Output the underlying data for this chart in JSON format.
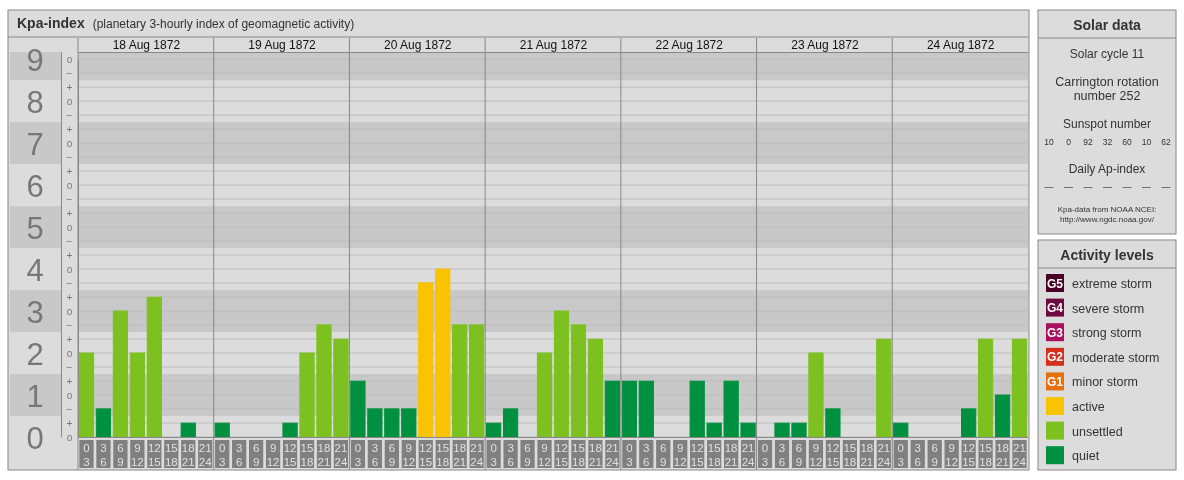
{
  "chart_data": {
    "type": "bar",
    "title": "Kpa-index",
    "subtitle": "(planetary 3-hourly index of geomagnetic activity)",
    "legend_title": "Activity levels",
    "legend": "right",
    "grid": true,
    "categories": [
      "0 3",
      "3 6",
      "6 9",
      "9 12",
      "12 15",
      "15 18",
      "18 21",
      "21 24",
      "0 3",
      "3 6",
      "6 9",
      "9 12",
      "12 15",
      "15 18",
      "18 21",
      "21 24",
      "0 3",
      "3 6",
      "6 9",
      "9 12",
      "12 15",
      "15 18",
      "18 21",
      "21 24",
      "0 3",
      "3 6",
      "6 9",
      "9 12",
      "12 15",
      "15 18",
      "18 21",
      "21 24",
      "0 3",
      "3 6",
      "6 9",
      "9 12",
      "12 15",
      "15 18",
      "18 21",
      "21 24",
      "0 3",
      "3 6",
      "6 9",
      "9 12",
      "12 15",
      "15 18",
      "18 21",
      "21 24",
      "0 3",
      "3 6",
      "6 9",
      "9 12",
      "12 15",
      "15 18",
      "18 21",
      "21 24"
    ],
    "series": [
      {
        "name": "extreme storm",
        "color": "#4b0026",
        "values": [
          null,
          null,
          null,
          null,
          null,
          null,
          null,
          null,
          null,
          null,
          null,
          null,
          null,
          null,
          null,
          null,
          null,
          null,
          null,
          null,
          null,
          null,
          null,
          null,
          null,
          null,
          null,
          null,
          null,
          null,
          null,
          null,
          null,
          null,
          null,
          null,
          null,
          null,
          null,
          null,
          null,
          null,
          null,
          null,
          null,
          null,
          null,
          null,
          null,
          null,
          null,
          null,
          null,
          null,
          null,
          null
        ]
      },
      {
        "name": "severe storm",
        "color": "#6e0a40",
        "values": [
          null,
          null,
          null,
          null,
          null,
          null,
          null,
          null,
          null,
          null,
          null,
          null,
          null,
          null,
          null,
          null,
          null,
          null,
          null,
          null,
          null,
          null,
          null,
          null,
          null,
          null,
          null,
          null,
          null,
          null,
          null,
          null,
          null,
          null,
          null,
          null,
          null,
          null,
          null,
          null,
          null,
          null,
          null,
          null,
          null,
          null,
          null,
          null,
          null,
          null,
          null,
          null,
          null,
          null,
          null,
          null
        ]
      },
      {
        "name": "strong storm",
        "color": "#a8105e",
        "values": [
          null,
          null,
          null,
          null,
          null,
          null,
          null,
          null,
          null,
          null,
          null,
          null,
          null,
          null,
          null,
          null,
          null,
          null,
          null,
          null,
          null,
          null,
          null,
          null,
          null,
          null,
          null,
          null,
          null,
          null,
          null,
          null,
          null,
          null,
          null,
          null,
          null,
          null,
          null,
          null,
          null,
          null,
          null,
          null,
          null,
          null,
          null,
          null,
          null,
          null,
          null,
          null,
          null,
          null,
          null,
          null
        ]
      },
      {
        "name": "moderate storm",
        "color": "#d42e1c",
        "values": [
          null,
          null,
          null,
          null,
          null,
          null,
          null,
          null,
          null,
          null,
          null,
          null,
          null,
          null,
          null,
          null,
          null,
          null,
          null,
          null,
          null,
          null,
          null,
          null,
          null,
          null,
          null,
          null,
          null,
          null,
          null,
          null,
          null,
          null,
          null,
          null,
          null,
          null,
          null,
          null,
          null,
          null,
          null,
          null,
          null,
          null,
          null,
          null,
          null,
          null,
          null,
          null,
          null,
          null,
          null,
          null
        ]
      },
      {
        "name": "minor storm",
        "color": "#e5700e",
        "values": [
          null,
          null,
          null,
          null,
          null,
          null,
          null,
          null,
          null,
          null,
          null,
          null,
          null,
          null,
          null,
          null,
          null,
          null,
          null,
          null,
          null,
          null,
          null,
          null,
          null,
          null,
          null,
          null,
          null,
          null,
          null,
          null,
          null,
          null,
          null,
          null,
          null,
          null,
          null,
          null,
          null,
          null,
          null,
          null,
          null,
          null,
          null,
          null,
          null,
          null,
          null,
          null,
          null,
          null,
          null,
          null
        ]
      },
      {
        "name": "active",
        "color": "#f9c300",
        "values": [
          null,
          null,
          null,
          null,
          null,
          null,
          null,
          null,
          null,
          null,
          null,
          null,
          null,
          null,
          null,
          null,
          null,
          null,
          null,
          null,
          3.67,
          4,
          null,
          null,
          null,
          null,
          null,
          null,
          null,
          null,
          null,
          null,
          null,
          null,
          null,
          null,
          null,
          null,
          null,
          null,
          null,
          null,
          null,
          null,
          null,
          null,
          null,
          null,
          null,
          null,
          null,
          null,
          null,
          null,
          null,
          null
        ]
      },
      {
        "name": "unsettled",
        "color": "#7cc120",
        "values": [
          2,
          null,
          3,
          2,
          3.33,
          null,
          null,
          null,
          null,
          null,
          null,
          null,
          null,
          2,
          2.67,
          2.33,
          null,
          null,
          null,
          null,
          null,
          null,
          2.67,
          2.67,
          null,
          null,
          null,
          2,
          3,
          2.67,
          2.33,
          null,
          null,
          null,
          null,
          null,
          null,
          null,
          null,
          null,
          null,
          null,
          null,
          2,
          null,
          null,
          null,
          2.33,
          null,
          null,
          null,
          null,
          null,
          2.33,
          null,
          2.33
        ]
      },
      {
        "name": "quiet",
        "color": "#009140",
        "values": [
          null,
          0.67,
          null,
          null,
          null,
          0,
          0.33,
          0,
          0.33,
          0,
          0,
          0,
          0.33,
          null,
          null,
          null,
          1.33,
          0.67,
          0.67,
          0.67,
          null,
          null,
          null,
          null,
          0.33,
          0.67,
          0,
          null,
          null,
          null,
          null,
          1.33,
          1.33,
          1.33,
          0,
          0,
          1.33,
          0.33,
          1.33,
          0.33,
          0,
          0.33,
          0.33,
          null,
          0.67,
          0,
          0,
          null,
          0.33,
          0,
          0,
          0,
          0.67,
          null,
          1,
          null
        ]
      }
    ],
    "ylim": [
      0,
      9.17
    ],
    "yticks": [
      0,
      1,
      2,
      3,
      4,
      5,
      6,
      7,
      8,
      9
    ],
    "y2_categories": [
      "o",
      "−",
      "+",
      "o",
      "−",
      "+",
      "o",
      "−",
      "+",
      "o",
      "−",
      "+",
      "o",
      "−",
      "+",
      "o",
      "−",
      "+",
      "o",
      "−",
      "+",
      "o",
      "−",
      "+",
      "o",
      "−",
      "+",
      "o"
    ],
    "x2lim": [
      "1872-08-18",
      "1872-08-25"
    ],
    "x2ticks": [
      {
        "value": "1872-08-18T12:00",
        "label": "18 Aug 1872"
      },
      {
        "value": "1872-08-19T12:00",
        "label": "19 Aug 1872"
      },
      {
        "value": "1872-08-20T12:00",
        "label": "20 Aug 1872"
      },
      {
        "value": "1872-08-21T12:00",
        "label": "21 Aug 1872"
      },
      {
        "value": "1872-08-22T12:00",
        "label": "22 Aug 1872"
      },
      {
        "value": "1872-08-23T12:00",
        "label": "23 Aug 1872"
      },
      {
        "value": "1872-08-24T12:00",
        "label": "24 Aug 1872"
      }
    ],
    "bands": [
      {
        "axis": "y",
        "from": 0.5,
        "to": 1.5,
        "color": "#c8c8c8"
      },
      {
        "axis": "y",
        "from": 2.5,
        "to": 3.5,
        "color": "#c8c8c8"
      },
      {
        "axis": "y",
        "from": 4.5,
        "to": 5.5,
        "color": "#c8c8c8"
      },
      {
        "axis": "y",
        "from": 6.5,
        "to": 7.5,
        "color": "#c8c8c8"
      },
      {
        "axis": "y",
        "from": 8.5,
        "to": 9.17,
        "color": "#c8c8c8"
      }
    ],
    "annotations": [
      "Solar data",
      "Solar cycle 11",
      "Carrington rotation number 252",
      "Sunspot number",
      "10",
      "0",
      "92",
      "32",
      "60",
      "10",
      "62",
      "Daily Ap-index",
      "—",
      "—",
      "—",
      "—",
      "—",
      "—",
      "—",
      "Kpa-data from NOAA NCEI: http://www.ngdc.noaa.gov/",
      "G5",
      "G4",
      "G3",
      "G2",
      "G1"
    ]
  }
}
